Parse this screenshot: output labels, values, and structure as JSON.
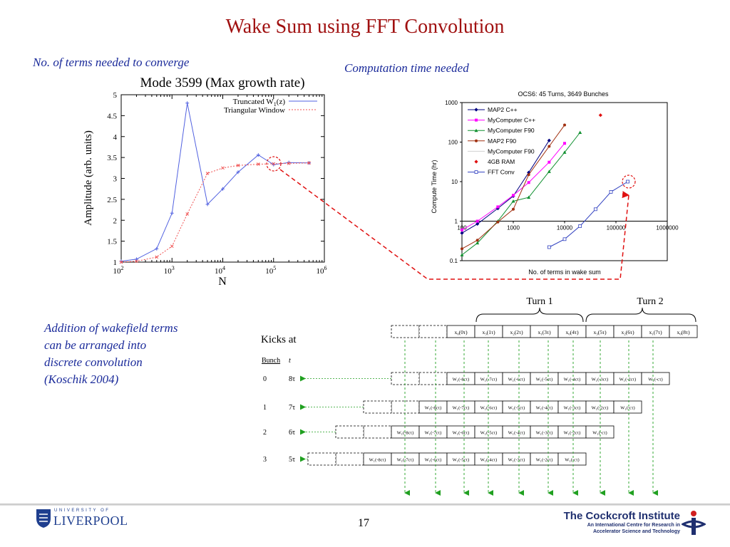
{
  "slide": {
    "title": "Wake Sum using FFT Convolution",
    "caption_converge": "No. of terms needed to converge",
    "caption_time": "Computation time needed",
    "caption_addition": [
      "Addition of wakefield terms",
      "can be arranged into",
      "discrete convolution",
      "(Koschik 2004)"
    ],
    "page_number": "17",
    "logo_left_top": "UNIVERSITY OF",
    "logo_left_bottom": "LIVERPOOL",
    "logo_right_title": "The Cockcroft Institute",
    "logo_right_sub1": "An International Centre for Research in",
    "logo_right_sub2": "Accelerator Science and Technology",
    "colors": {
      "title": "#a01010",
      "caption": "#1a2a9a",
      "link": "#e01010",
      "arrow": "#20a020"
    }
  },
  "chart_data": [
    {
      "type": "line",
      "title": "Mode 3599 (Max growth rate)",
      "xlabel": "N",
      "ylabel": "Amplitude (arb. units)",
      "xscale": "log",
      "xlim": [
        100,
        1000000
      ],
      "ylim": [
        1,
        5
      ],
      "x_ticks": [
        "10",
        "10",
        "10",
        "10",
        "10"
      ],
      "x_tick_exponents": [
        "2",
        "3",
        "4",
        "5",
        "6"
      ],
      "y_ticks": [
        "1",
        "1.5",
        "2",
        "2.5",
        "3",
        "3.5",
        "4",
        "4.5",
        "5"
      ],
      "legend": "top-right",
      "series": [
        {
          "name": "Truncated W",
          "name_sub": "1",
          "name_suffix": "(z)",
          "color": "#5060e0",
          "marker": "plus",
          "x": [
            100,
            200,
            500,
            1000,
            2000,
            5000,
            10000,
            20000,
            50000,
            100000,
            200000,
            500000
          ],
          "y": [
            1.02,
            1.07,
            1.32,
            2.17,
            4.8,
            2.38,
            2.75,
            3.15,
            3.56,
            3.33,
            3.38,
            3.37
          ]
        },
        {
          "name": "Triangular Window",
          "color": "#f05050",
          "marker": "x",
          "x": [
            100,
            200,
            500,
            1000,
            2000,
            5000,
            10000,
            20000,
            50000,
            100000,
            200000,
            500000
          ],
          "y": [
            1.0,
            1.02,
            1.12,
            1.38,
            2.15,
            3.12,
            3.25,
            3.31,
            3.34,
            3.35,
            3.36,
            3.37
          ]
        }
      ]
    },
    {
      "type": "line",
      "title": "OCS6: 45 Turns, 3649 Bunches",
      "xlabel": "No. of terms in wake sum",
      "ylabel": "Compute Time (hr)",
      "xscale": "log",
      "yscale": "log",
      "xlim": [
        100,
        1000000
      ],
      "ylim": [
        0.1,
        1000
      ],
      "x_ticks": [
        "100",
        "1000",
        "10000",
        "100000",
        "1000000"
      ],
      "y_ticks": [
        "0.1",
        "1",
        "10",
        "100",
        "1000"
      ],
      "legend": "top-left",
      "series": [
        {
          "name": "MAP2 C++",
          "color": "#000080",
          "marker": "diamond",
          "x": [
            100,
            200,
            500,
            1000,
            2000,
            5000
          ],
          "y": [
            0.5,
            0.85,
            2.1,
            4.3,
            17,
            110
          ]
        },
        {
          "name": "MyComputer C++",
          "color": "#ff00ff",
          "marker": "square",
          "x": [
            100,
            200,
            500,
            1000,
            2000,
            5000,
            10000
          ],
          "y": [
            0.6,
            1.0,
            2.3,
            4.5,
            9.5,
            31,
            93
          ]
        },
        {
          "name": "MyComputer F90",
          "color": "#109030",
          "marker": "triangle",
          "x": [
            100,
            200,
            500,
            1000,
            2000,
            5000,
            10000,
            20000
          ],
          "y": [
            0.14,
            0.28,
            1.0,
            3.2,
            4.0,
            18,
            55,
            175
          ]
        },
        {
          "name": "MAP2 F90",
          "color": "#a03010",
          "marker": "circle",
          "x": [
            100,
            200,
            500,
            1000,
            2000,
            5000,
            10000
          ],
          "y": [
            0.2,
            0.33,
            0.95,
            2.0,
            15,
            78,
            270
          ]
        },
        {
          "name": "MyComputer F90",
          "color": "#d0d0d0",
          "marker": "none",
          "x": [],
          "y": []
        },
        {
          "name": "4GB RAM",
          "color": "#e01010",
          "marker": "diamond",
          "x": [
            50000
          ],
          "y": [
            480
          ]
        },
        {
          "name": "FFT Conv",
          "color": "#3040c0",
          "marker": "open-square",
          "x": [
            5000,
            10000,
            20000,
            40000,
            80000,
            170000
          ],
          "y": [
            0.22,
            0.35,
            0.75,
            2.0,
            5.5,
            10
          ]
        }
      ]
    }
  ],
  "diagram": {
    "kicks_title": "Kicks at",
    "bunch_header": "Bunch",
    "t_header": "t",
    "turn1": "Turn 1",
    "turn2": "Turn 2",
    "top_cells": [
      "x₀(0τ)",
      "x₃(1τ)",
      "x₂(2τ)",
      "x₁(3τ)",
      "x₀(4τ)",
      "x₃(5τ)",
      "x₂(6τ)",
      "x₁(7τ)",
      "x₀(8τ)"
    ],
    "rows": [
      {
        "bunch": "0",
        "t": "8τ",
        "cells": [
          "W₁(-8cτ)",
          "W₁(-7cτ)",
          "W₁(-6cτ)",
          "W₁(-5cτ)",
          "W₁(-4cτ)",
          "W₁(-3cτ)",
          "W₁(-2cτ)",
          "W₁(-cτ)"
        ]
      },
      {
        "bunch": "1",
        "t": "7τ",
        "cells": [
          "W₁(-8cτ)",
          "W₁(-7cτ)",
          "W₁(-6cτ)",
          "W₁(-5cτ)",
          "W₁(-4cτ)",
          "W₁(-3cτ)",
          "W₁(-2cτ)",
          "W₁(-cτ)"
        ]
      },
      {
        "bunch": "2",
        "t": "6τ",
        "cells": [
          "W₁(-8cτ)",
          "W₁(-7cτ)",
          "W₁(-6cτ)",
          "W₁(-5cτ)",
          "W₁(-4cτ)",
          "W₁(-3cτ)",
          "W₁(-2cτ)",
          "W₁(-cτ)"
        ]
      },
      {
        "bunch": "3",
        "t": "5τ",
        "cells": [
          "W₁(-8cτ)",
          "W₁(-7cτ)",
          "W₁(-6cτ)",
          "W₁(-5cτ)",
          "W₁(-4cτ)",
          "W₁(-3cτ)",
          "W₁(-2cτ)",
          "W₁(-cτ)"
        ]
      }
    ]
  }
}
